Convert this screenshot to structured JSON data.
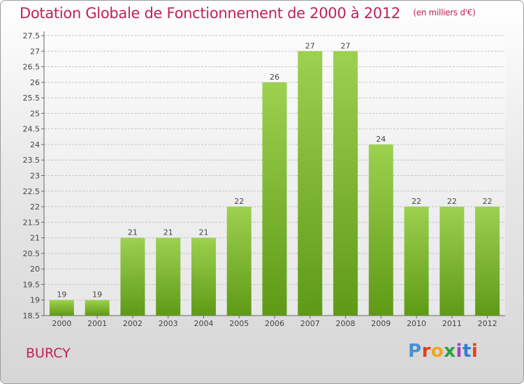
{
  "header": {
    "title": "Dotation Globale de Fonctionnement de 2000 à 2012",
    "subtitle": "(en milliers d'€)"
  },
  "footer": {
    "commune": "BURCY",
    "logo_letters": [
      "P",
      "r",
      "o",
      "x",
      "i",
      "t",
      "i"
    ]
  },
  "colors": {
    "title": "#c0215a",
    "bar_top": "#9dd150",
    "bar_bottom": "#5e9a16",
    "logo": [
      "#4a8fd0",
      "#e2401c",
      "#f1a51b",
      "#2ba040",
      "#9a47b5",
      "#2f7fce",
      "#e2401c"
    ]
  },
  "chart_data": {
    "type": "bar",
    "categories": [
      "2000",
      "2001",
      "2002",
      "2003",
      "2004",
      "2005",
      "2006",
      "2007",
      "2008",
      "2009",
      "2010",
      "2011",
      "2012"
    ],
    "values": [
      19,
      19,
      21,
      21,
      21,
      22,
      26,
      27,
      27,
      24,
      22,
      22,
      22
    ],
    "data_labels": [
      "19",
      "19",
      "21",
      "21",
      "21",
      "22",
      "26",
      "27",
      "27",
      "24",
      "22",
      "22",
      "22"
    ],
    "title": "Dotation Globale de Fonctionnement de 2000 à 2012",
    "ylim": [
      18.5,
      27.5
    ],
    "yticks": [
      "18.5",
      "19",
      "19.5",
      "20",
      "20.5",
      "21",
      "21.5",
      "22",
      "22.5",
      "23",
      "23.5",
      "24",
      "24.5",
      "25",
      "25.5",
      "26",
      "26.5",
      "27",
      "27.5"
    ],
    "grid": true
  }
}
